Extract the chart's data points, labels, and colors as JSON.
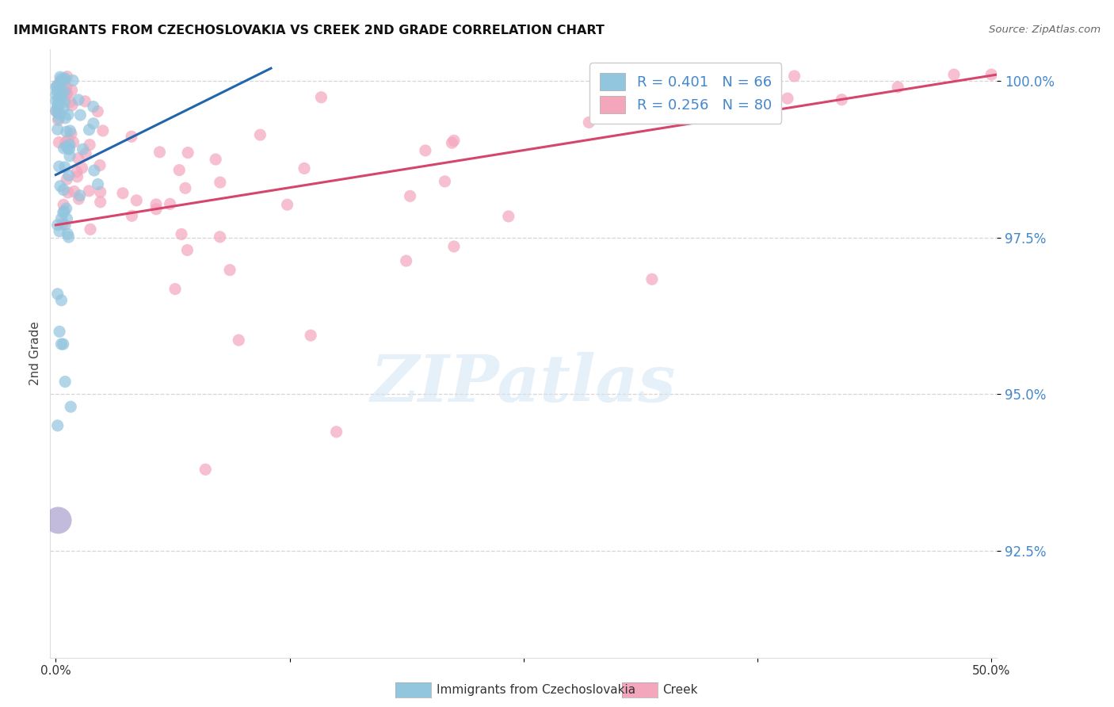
{
  "title": "IMMIGRANTS FROM CZECHOSLOVAKIA VS CREEK 2ND GRADE CORRELATION CHART",
  "source": "Source: ZipAtlas.com",
  "ylabel": "2nd Grade",
  "ytick_values": [
    1.0,
    0.975,
    0.95,
    0.925
  ],
  "ytick_labels": [
    "100.0%",
    "97.5%",
    "95.0%",
    "92.5%"
  ],
  "xlim": [
    -0.003,
    0.503
  ],
  "ylim": [
    0.908,
    1.005
  ],
  "legend_text_blue": "R = 0.401   N = 66",
  "legend_text_pink": "R = 0.256   N = 80",
  "watermark": "ZIPatlas",
  "blue_color": "#92c5de",
  "pink_color": "#f4a6bd",
  "trendline_blue": "#2166ac",
  "trendline_pink": "#d6456b",
  "ytick_color": "#4488cc",
  "blue_trendline_x": [
    0.0,
    0.115
  ],
  "blue_trendline_y": [
    0.985,
    1.002
  ],
  "pink_trendline_x": [
    0.0,
    0.503
  ],
  "pink_trendline_y": [
    0.977,
    1.001
  ]
}
